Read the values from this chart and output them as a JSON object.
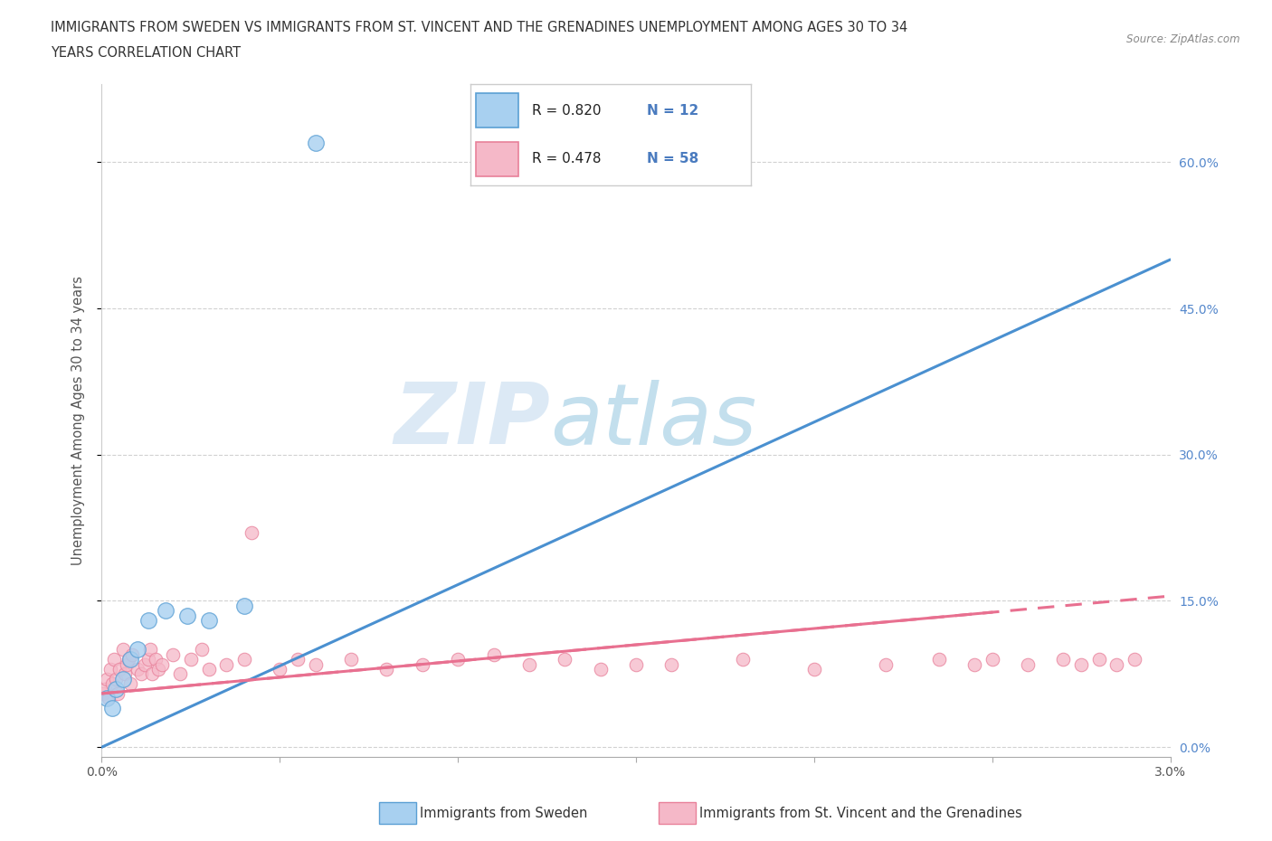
{
  "title_line1": "IMMIGRANTS FROM SWEDEN VS IMMIGRANTS FROM ST. VINCENT AND THE GRENADINES UNEMPLOYMENT AMONG AGES 30 TO 34",
  "title_line2": "YEARS CORRELATION CHART",
  "source_text": "Source: ZipAtlas.com",
  "ylabel": "Unemployment Among Ages 30 to 34 years",
  "xlabel_sweden": "Immigrants from Sweden",
  "xlabel_stvincent": "Immigrants from St. Vincent and the Grenadines",
  "watermark_zip": "ZIP",
  "watermark_atlas": "atlas",
  "legend_r1": "R = 0.820",
  "legend_n1": "N = 12",
  "legend_r2": "R = 0.478",
  "legend_n2": "N = 58",
  "color_sweden": "#a8d0f0",
  "color_stvincent": "#f5b8c8",
  "color_sweden_edge": "#5a9fd4",
  "color_stvincent_edge": "#e8809a",
  "color_sweden_line": "#4a90d0",
  "color_stvincent_line": "#e87090",
  "color_text_blue": "#4a7bbf",
  "color_right_ticks": "#5588cc",
  "xlim": [
    0.0,
    0.03
  ],
  "ylim": [
    -0.01,
    0.68
  ],
  "yticks": [
    0.0,
    0.15,
    0.3,
    0.45,
    0.6
  ],
  "ytick_labels": [
    "0.0%",
    "15.0%",
    "30.0%",
    "45.0%",
    "60.0%"
  ],
  "xtick_positions": [
    0.0,
    0.005,
    0.01,
    0.015,
    0.02,
    0.025,
    0.03
  ],
  "xtick_labels_show": [
    "0.0%",
    "",
    "",
    "",
    "",
    "",
    "3.0%"
  ],
  "sweden_x": [
    0.00015,
    0.0003,
    0.0004,
    0.0006,
    0.0008,
    0.001,
    0.0013,
    0.0018,
    0.0024,
    0.003,
    0.004,
    0.006
  ],
  "sweden_y": [
    0.05,
    0.04,
    0.06,
    0.07,
    0.09,
    0.1,
    0.13,
    0.14,
    0.135,
    0.13,
    0.145,
    0.62
  ],
  "stvincent_x": [
    5e-05,
    0.0001,
    0.00015,
    0.0002,
    0.00025,
    0.0003,
    0.00035,
    0.0004,
    0.00045,
    0.0005,
    0.0006,
    0.00065,
    0.0007,
    0.00075,
    0.0008,
    0.00085,
    0.001,
    0.0011,
    0.0012,
    0.0013,
    0.00135,
    0.0014,
    0.0015,
    0.0016,
    0.0017,
    0.002,
    0.0022,
    0.0025,
    0.0028,
    0.003,
    0.0035,
    0.004,
    0.0042,
    0.005,
    0.0055,
    0.006,
    0.007,
    0.008,
    0.009,
    0.01,
    0.011,
    0.012,
    0.013,
    0.014,
    0.015,
    0.016,
    0.018,
    0.02,
    0.022,
    0.0235,
    0.0245,
    0.025,
    0.026,
    0.027,
    0.0275,
    0.028,
    0.0285,
    0.029
  ],
  "stvincent_y": [
    0.055,
    0.06,
    0.07,
    0.05,
    0.08,
    0.065,
    0.09,
    0.07,
    0.055,
    0.08,
    0.1,
    0.075,
    0.085,
    0.09,
    0.065,
    0.095,
    0.08,
    0.075,
    0.085,
    0.09,
    0.1,
    0.075,
    0.09,
    0.08,
    0.085,
    0.095,
    0.075,
    0.09,
    0.1,
    0.08,
    0.085,
    0.09,
    0.22,
    0.08,
    0.09,
    0.085,
    0.09,
    0.08,
    0.085,
    0.09,
    0.095,
    0.085,
    0.09,
    0.08,
    0.085,
    0.085,
    0.09,
    0.08,
    0.085,
    0.09,
    0.085,
    0.09,
    0.085,
    0.09,
    0.085,
    0.09,
    0.085,
    0.09
  ],
  "sweden_line_x": [
    0.0,
    0.03
  ],
  "sweden_line_y": [
    0.0,
    0.5
  ],
  "stvincent_line_x": [
    0.0,
    0.03
  ],
  "stvincent_line_y": [
    0.055,
    0.155
  ]
}
